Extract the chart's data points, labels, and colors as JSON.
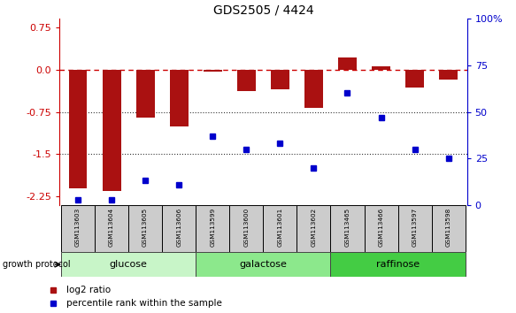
{
  "title": "GDS2505 / 4424",
  "samples": [
    "GSM113603",
    "GSM113604",
    "GSM113605",
    "GSM113606",
    "GSM113599",
    "GSM113600",
    "GSM113601",
    "GSM113602",
    "GSM113465",
    "GSM113466",
    "GSM113597",
    "GSM113598"
  ],
  "log2_values": [
    -2.1,
    -2.15,
    -0.85,
    -1.0,
    -0.04,
    -0.38,
    -0.35,
    -0.68,
    0.22,
    0.05,
    -0.32,
    -0.18
  ],
  "percentile_vals": [
    3,
    3,
    13,
    11,
    37,
    30,
    33,
    20,
    60,
    47,
    30,
    25
  ],
  "group_colors": {
    "glucose": "#c8f5c8",
    "galactose": "#8ce88c",
    "raffinose": "#44cc44"
  },
  "bar_color": "#aa1111",
  "dot_color": "#0000cc",
  "hline_color": "#cc0000",
  "bg_color": "#ffffff",
  "ylim_left": [
    -2.4,
    0.9
  ],
  "ylim_right": [
    0,
    100
  ],
  "yticks_left": [
    0.75,
    0.0,
    -0.75,
    -1.5,
    -2.25
  ],
  "yticks_right_vals": [
    100,
    75,
    50,
    25,
    0
  ],
  "yticks_right_labels": [
    "100%",
    "75",
    "50",
    "25",
    "0"
  ]
}
